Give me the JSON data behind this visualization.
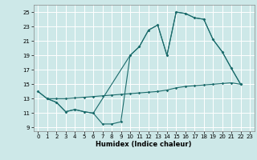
{
  "xlabel": "Humidex (Indice chaleur)",
  "bg_color": "#cde8e8",
  "grid_color": "#ffffff",
  "line_color": "#1a6b6b",
  "xlim": [
    -0.5,
    23.5
  ],
  "ylim": [
    8.5,
    26
  ],
  "yticks": [
    9,
    11,
    13,
    15,
    17,
    19,
    21,
    23,
    25
  ],
  "xticks": [
    0,
    1,
    2,
    3,
    4,
    5,
    6,
    7,
    8,
    9,
    10,
    11,
    12,
    13,
    14,
    15,
    16,
    17,
    18,
    19,
    20,
    21,
    22,
    23
  ],
  "line1_x": [
    0,
    1,
    2,
    3,
    4,
    5,
    6,
    7,
    8,
    9,
    10,
    11,
    12,
    13,
    14,
    15,
    16,
    17,
    18,
    19,
    20,
    21,
    22
  ],
  "line1_y": [
    14.0,
    13.0,
    12.5,
    11.2,
    11.5,
    11.2,
    11.0,
    9.5,
    9.5,
    9.8,
    19.0,
    20.2,
    22.5,
    23.2,
    19.0,
    25.0,
    24.8,
    24.2,
    24.0,
    21.2,
    19.5,
    17.2,
    15.0
  ],
  "line2_x": [
    0,
    1,
    2,
    3,
    4,
    5,
    6,
    10,
    11,
    12,
    13,
    14,
    15,
    16,
    17,
    18,
    19,
    20,
    21,
    22
  ],
  "line2_y": [
    14.0,
    13.0,
    12.5,
    11.2,
    11.5,
    11.2,
    11.0,
    19.0,
    20.2,
    22.5,
    23.2,
    19.0,
    25.0,
    24.8,
    24.2,
    24.0,
    21.2,
    19.5,
    17.2,
    15.0
  ],
  "line3_x": [
    1,
    2,
    3,
    4,
    5,
    6,
    7,
    8,
    9,
    10,
    11,
    12,
    13,
    14,
    15,
    16,
    17,
    18,
    19,
    20,
    21,
    22
  ],
  "line3_y": [
    13.0,
    13.0,
    13.0,
    13.1,
    13.2,
    13.3,
    13.4,
    13.5,
    13.6,
    13.7,
    13.8,
    13.9,
    14.0,
    14.2,
    14.5,
    14.7,
    14.8,
    14.9,
    15.0,
    15.1,
    15.2,
    15.0
  ],
  "xlabel_fontsize": 6.0,
  "tick_fontsize": 5.0,
  "linewidth": 0.8,
  "markersize": 1.8
}
